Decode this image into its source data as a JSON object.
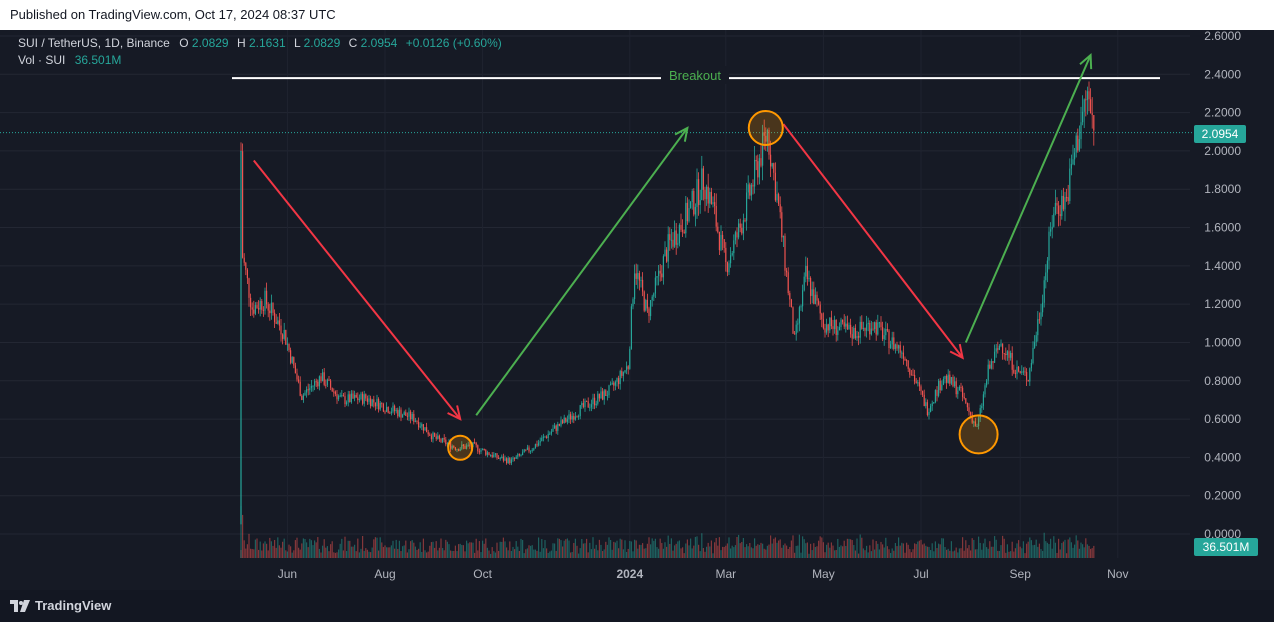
{
  "header": {
    "published": "Published on TradingView.com, Oct 17, 2024 08:37 UTC"
  },
  "legend": {
    "symbol": "SUI / TetherUS, 1D, Binance",
    "o_label": "O",
    "o_value": "2.0829",
    "h_label": "H",
    "h_value": "2.1631",
    "l_label": "L",
    "l_value": "2.0829",
    "c_label": "C",
    "c_value": "2.0954",
    "change": "+0.0126 (+0.60%)",
    "vol_label": "Vol · SUI",
    "vol_value": "36.501M"
  },
  "annotation": {
    "breakout_label": "Breakout"
  },
  "price_badge": "2.0954",
  "volume_badge": "36.501M",
  "footer": {
    "brand": "TradingView"
  },
  "colors": {
    "up": "#26a69a",
    "down": "#ef5350",
    "green_arrow": "#4caf50",
    "red_arrow": "#f23645",
    "circle": "#ff9800",
    "background": "#161a25"
  },
  "chart_data": {
    "type": "candlestick",
    "y_ticks": [
      "2.6000",
      "2.4000",
      "2.2000",
      "2.0000",
      "1.8000",
      "1.6000",
      "1.4000",
      "1.2000",
      "1.0000",
      "0.8000",
      "0.6000",
      "0.4000",
      "0.2000",
      "0.0000"
    ],
    "x_ticks": [
      "Jun",
      "Aug",
      "Oct",
      "2024",
      "Mar",
      "May",
      "Jul",
      "Sep",
      "Nov"
    ],
    "ylim": [
      0,
      2.6
    ],
    "last_close": 2.0954,
    "breakout_level": 2.38,
    "price_path": [
      [
        "2023-05-03",
        2.0
      ],
      [
        "2023-05-04",
        1.45
      ],
      [
        "2023-05-10",
        1.18
      ],
      [
        "2023-05-18",
        1.22
      ],
      [
        "2023-05-30",
        1.05
      ],
      [
        "2023-06-10",
        0.72
      ],
      [
        "2023-06-22",
        0.82
      ],
      [
        "2023-07-05",
        0.7
      ],
      [
        "2023-07-20",
        0.71
      ],
      [
        "2023-08-05",
        0.65
      ],
      [
        "2023-08-20",
        0.6
      ],
      [
        "2023-09-01",
        0.5
      ],
      [
        "2023-09-15",
        0.45
      ],
      [
        "2023-09-25",
        0.46
      ],
      [
        "2023-10-10",
        0.4
      ],
      [
        "2023-10-19",
        0.38
      ],
      [
        "2023-11-01",
        0.45
      ],
      [
        "2023-11-15",
        0.55
      ],
      [
        "2023-12-01",
        0.65
      ],
      [
        "2023-12-20",
        0.75
      ],
      [
        "2023-12-31",
        0.88
      ],
      [
        "2024-01-04",
        1.4
      ],
      [
        "2024-01-12",
        1.15
      ],
      [
        "2024-01-25",
        1.5
      ],
      [
        "2024-02-08",
        1.7
      ],
      [
        "2024-02-16",
        1.85
      ],
      [
        "2024-02-22",
        1.7
      ],
      [
        "2024-03-01",
        1.4
      ],
      [
        "2024-03-10",
        1.6
      ],
      [
        "2024-03-20",
        1.9
      ],
      [
        "2024-03-27",
        2.1
      ],
      [
        "2024-04-03",
        1.7
      ],
      [
        "2024-04-13",
        1.0
      ],
      [
        "2024-04-20",
        1.35
      ],
      [
        "2024-05-01",
        1.1
      ],
      [
        "2024-05-20",
        1.05
      ],
      [
        "2024-06-01",
        1.1
      ],
      [
        "2024-06-10",
        1.02
      ],
      [
        "2024-06-20",
        0.95
      ],
      [
        "2024-07-05",
        0.65
      ],
      [
        "2024-07-15",
        0.82
      ],
      [
        "2024-07-25",
        0.75
      ],
      [
        "2024-08-05",
        0.55
      ],
      [
        "2024-08-12",
        0.85
      ],
      [
        "2024-08-20",
        1.0
      ],
      [
        "2024-08-30",
        0.85
      ],
      [
        "2024-09-06",
        0.82
      ],
      [
        "2024-09-14",
        1.2
      ],
      [
        "2024-09-22",
        1.7
      ],
      [
        "2024-09-30",
        1.75
      ],
      [
        "2024-10-04",
        1.95
      ],
      [
        "2024-10-09",
        2.15
      ],
      [
        "2024-10-13",
        2.3
      ],
      [
        "2024-10-17",
        2.0954
      ]
    ],
    "green_arrows": [
      {
        "from": [
          "2023-09-27",
          0.62
        ],
        "to": [
          "2024-02-06",
          2.12
        ]
      },
      {
        "from": [
          "2024-07-29",
          1.0
        ],
        "to": [
          "2024-10-15",
          2.5
        ]
      }
    ],
    "red_arrows": [
      {
        "from": [
          "2023-05-11",
          1.95
        ],
        "to": [
          "2023-09-17",
          0.6
        ]
      },
      {
        "from": [
          "2024-04-06",
          2.14
        ],
        "to": [
          "2024-07-27",
          0.92
        ]
      }
    ],
    "circles": [
      {
        "date": "2023-09-17",
        "price": 0.45,
        "size": "small"
      },
      {
        "date": "2024-03-26",
        "price": 2.12,
        "size": "medium"
      },
      {
        "date": "2024-08-06",
        "price": 0.52,
        "size": "large"
      }
    ]
  }
}
